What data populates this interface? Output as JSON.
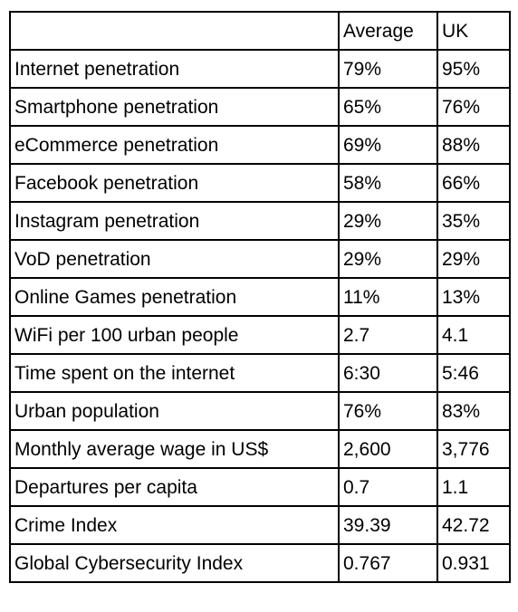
{
  "table": {
    "headers": [
      "",
      "Average",
      "UK"
    ],
    "rows": [
      {
        "label": "Internet penetration",
        "average": "79%",
        "uk": "95%"
      },
      {
        "label": "Smartphone penetration",
        "average": "65%",
        "uk": "76%"
      },
      {
        "label": "eCommerce penetration",
        "average": "69%",
        "uk": "88%"
      },
      {
        "label": "Facebook penetration",
        "average": "58%",
        "uk": "66%"
      },
      {
        "label": "Instagram penetration",
        "average": "29%",
        "uk": "35%"
      },
      {
        "label": "VoD penetration",
        "average": "29%",
        "uk": "29%"
      },
      {
        "label": "Online Games penetration",
        "average": "11%",
        "uk": "13%"
      },
      {
        "label": "WiFi per 100 urban people",
        "average": "2.7",
        "uk": "4.1"
      },
      {
        "label": "Time spent on the internet",
        "average": "6:30",
        "uk": "5:46"
      },
      {
        "label": "Urban population",
        "average": "76%",
        "uk": "83%"
      },
      {
        "label": "Monthly average wage in US$",
        "average": "2,600",
        "uk": "3,776"
      },
      {
        "label": "Departures per capita",
        "average": "0.7",
        "uk": "1.1"
      },
      {
        "label": "Crime Index",
        "average": "39.39",
        "uk": "42.72"
      },
      {
        "label": "Global Cybersecurity Index",
        "average": "0.767",
        "uk": "0.931"
      }
    ]
  }
}
